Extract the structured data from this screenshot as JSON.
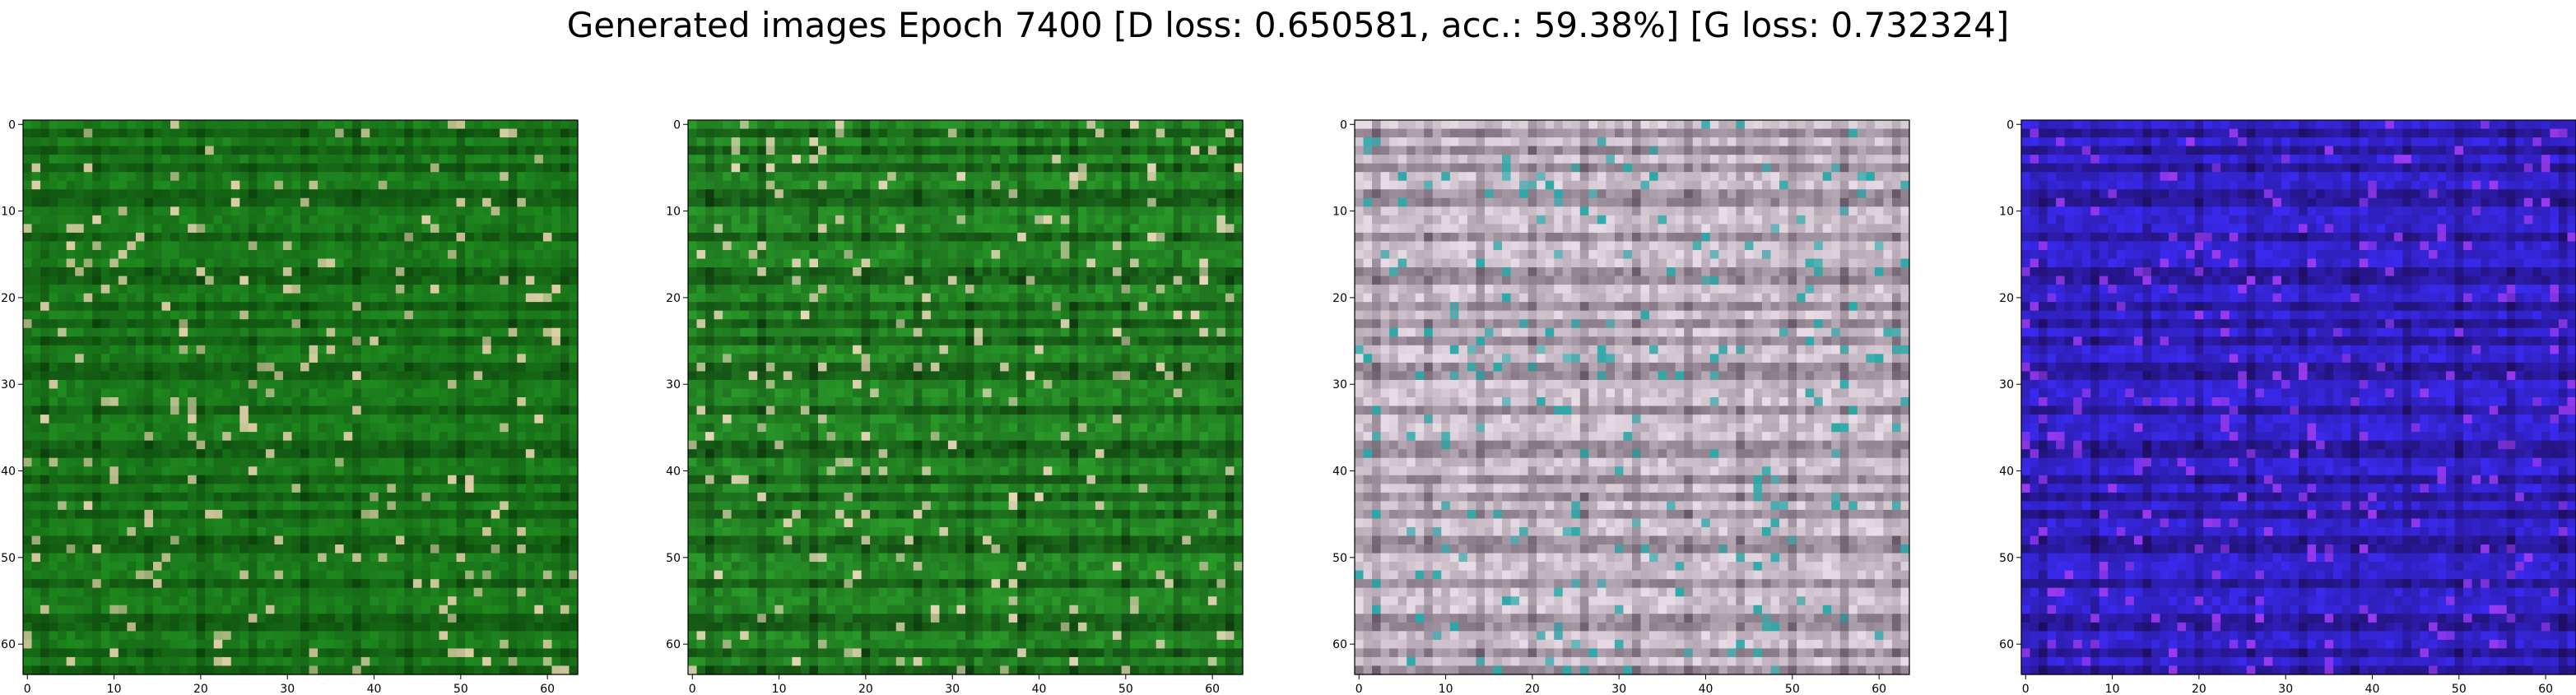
{
  "title": "Generated images Epoch 7400 [D loss: 0.650581, acc.: 59.38%] [G loss: 0.732324]",
  "chart_data": {
    "type": "heatmap",
    "title": "Generated images Epoch 7400 [D loss: 0.650581, acc.: 59.38%] [G loss: 0.732324]",
    "grid": false,
    "panels": [
      {
        "name": "",
        "xlim": [
          0,
          63
        ],
        "ylim": [
          63,
          0
        ],
        "xticks": [
          0,
          10,
          20,
          30,
          40,
          50,
          60
        ],
        "yticks": [
          0,
          10,
          20,
          30,
          40,
          50,
          60
        ],
        "base_color": "#1f8a1f",
        "stripe_color": "#0a3a0a",
        "highlight_color": "#e0cfa8"
      },
      {
        "name": "",
        "xlim": [
          0,
          63
        ],
        "ylim": [
          63,
          0
        ],
        "xticks": [
          0,
          10,
          20,
          30,
          40,
          50,
          60
        ],
        "yticks": [
          0,
          10,
          20,
          30,
          40,
          50,
          60
        ],
        "base_color": "#2a9a2a",
        "stripe_color": "#0a300a",
        "highlight_color": "#e8d8b8"
      },
      {
        "name": "",
        "xlim": [
          0,
          63
        ],
        "ylim": [
          63,
          0
        ],
        "xticks": [
          0,
          10,
          20,
          30,
          40,
          50,
          60
        ],
        "yticks": [
          0,
          10,
          20,
          30,
          40,
          50,
          60
        ],
        "base_color": "#e8dce6",
        "stripe_color": "#5a4a5a",
        "highlight_color": "#2aa8a8"
      },
      {
        "name": "",
        "xlim": [
          0,
          63
        ],
        "ylim": [
          63,
          0
        ],
        "xticks": [
          0,
          10,
          20,
          30,
          40,
          50,
          60
        ],
        "yticks": [
          0,
          10,
          20,
          30,
          40,
          50,
          60
        ],
        "base_color": "#3a2af0",
        "stripe_color": "#1a0a50",
        "highlight_color": "#9a3af0"
      }
    ]
  }
}
